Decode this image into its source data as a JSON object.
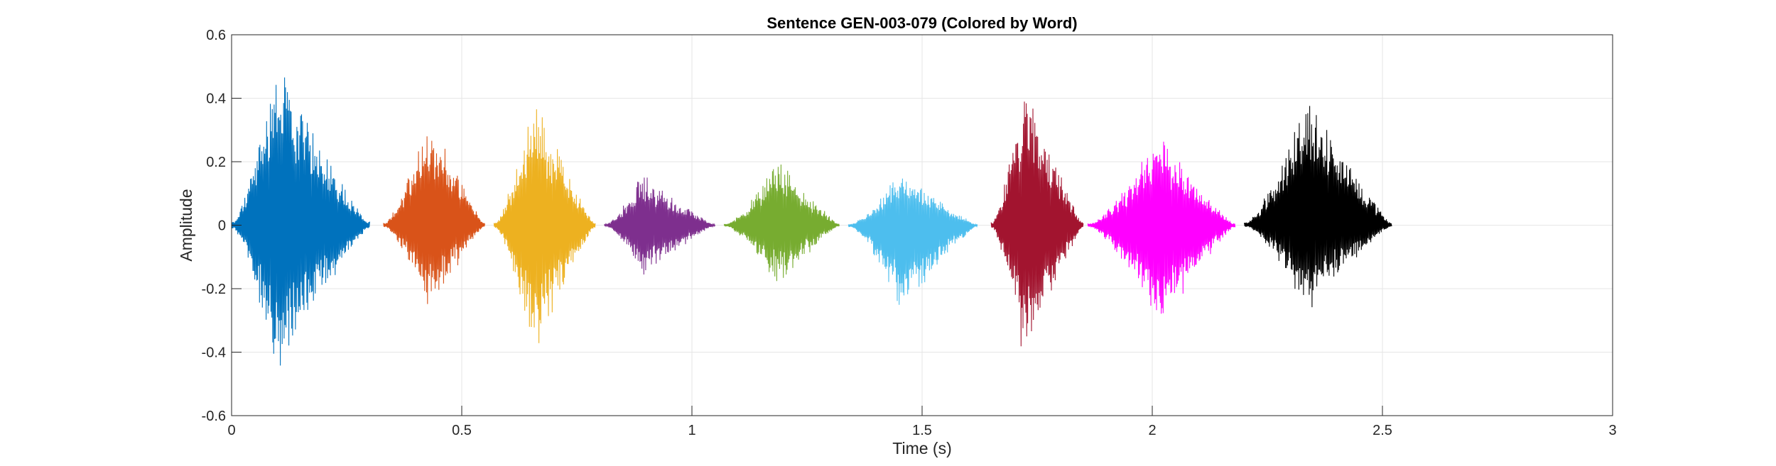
{
  "chart_data": {
    "type": "line",
    "title": "Sentence GEN-003-079 (Colored by Word)",
    "xlabel": "Time (s)",
    "ylabel": "Amplitude",
    "xlim": [
      0,
      3
    ],
    "ylim": [
      -0.6,
      0.6
    ],
    "xticks": [
      0,
      0.5,
      1,
      1.5,
      2,
      2.5,
      3
    ],
    "xtick_labels": [
      "0",
      "0.5",
      "1",
      "1.5",
      "2",
      "2.5",
      "3"
    ],
    "yticks": [
      -0.6,
      -0.4,
      -0.2,
      0,
      0.2,
      0.4,
      0.6
    ],
    "ytick_labels": [
      "-0.6",
      "-0.4",
      "-0.2",
      "0",
      "0.2",
      "0.4",
      "0.6"
    ],
    "grid": true,
    "series": [
      {
        "start": 0.0,
        "end": 0.3,
        "max_amplitude": 0.56,
        "min_amplitude": -0.49,
        "color": "#0072BD"
      },
      {
        "start": 0.33,
        "end": 0.55,
        "max_amplitude": 0.38,
        "min_amplitude": -0.29,
        "color": "#D95319"
      },
      {
        "start": 0.57,
        "end": 0.79,
        "max_amplitude": 0.43,
        "min_amplitude": -0.44,
        "color": "#EDB120"
      },
      {
        "start": 0.81,
        "end": 1.05,
        "max_amplitude": 0.17,
        "min_amplitude": -0.17,
        "color": "#7E2F8E"
      },
      {
        "start": 1.07,
        "end": 1.32,
        "max_amplitude": 0.22,
        "min_amplitude": -0.2,
        "color": "#77AC30"
      },
      {
        "start": 1.34,
        "end": 1.62,
        "max_amplitude": 0.18,
        "min_amplitude": -0.28,
        "color": "#4DBEEE"
      },
      {
        "start": 1.65,
        "end": 1.85,
        "max_amplitude": 0.48,
        "min_amplitude": -0.45,
        "color": "#A2142F"
      },
      {
        "start": 1.86,
        "end": 2.18,
        "max_amplitude": 0.3,
        "min_amplitude": -0.34,
        "color": "#FF00FF"
      },
      {
        "start": 2.2,
        "end": 2.52,
        "max_amplitude": 0.46,
        "min_amplitude": -0.28,
        "color": "#000000"
      }
    ]
  }
}
